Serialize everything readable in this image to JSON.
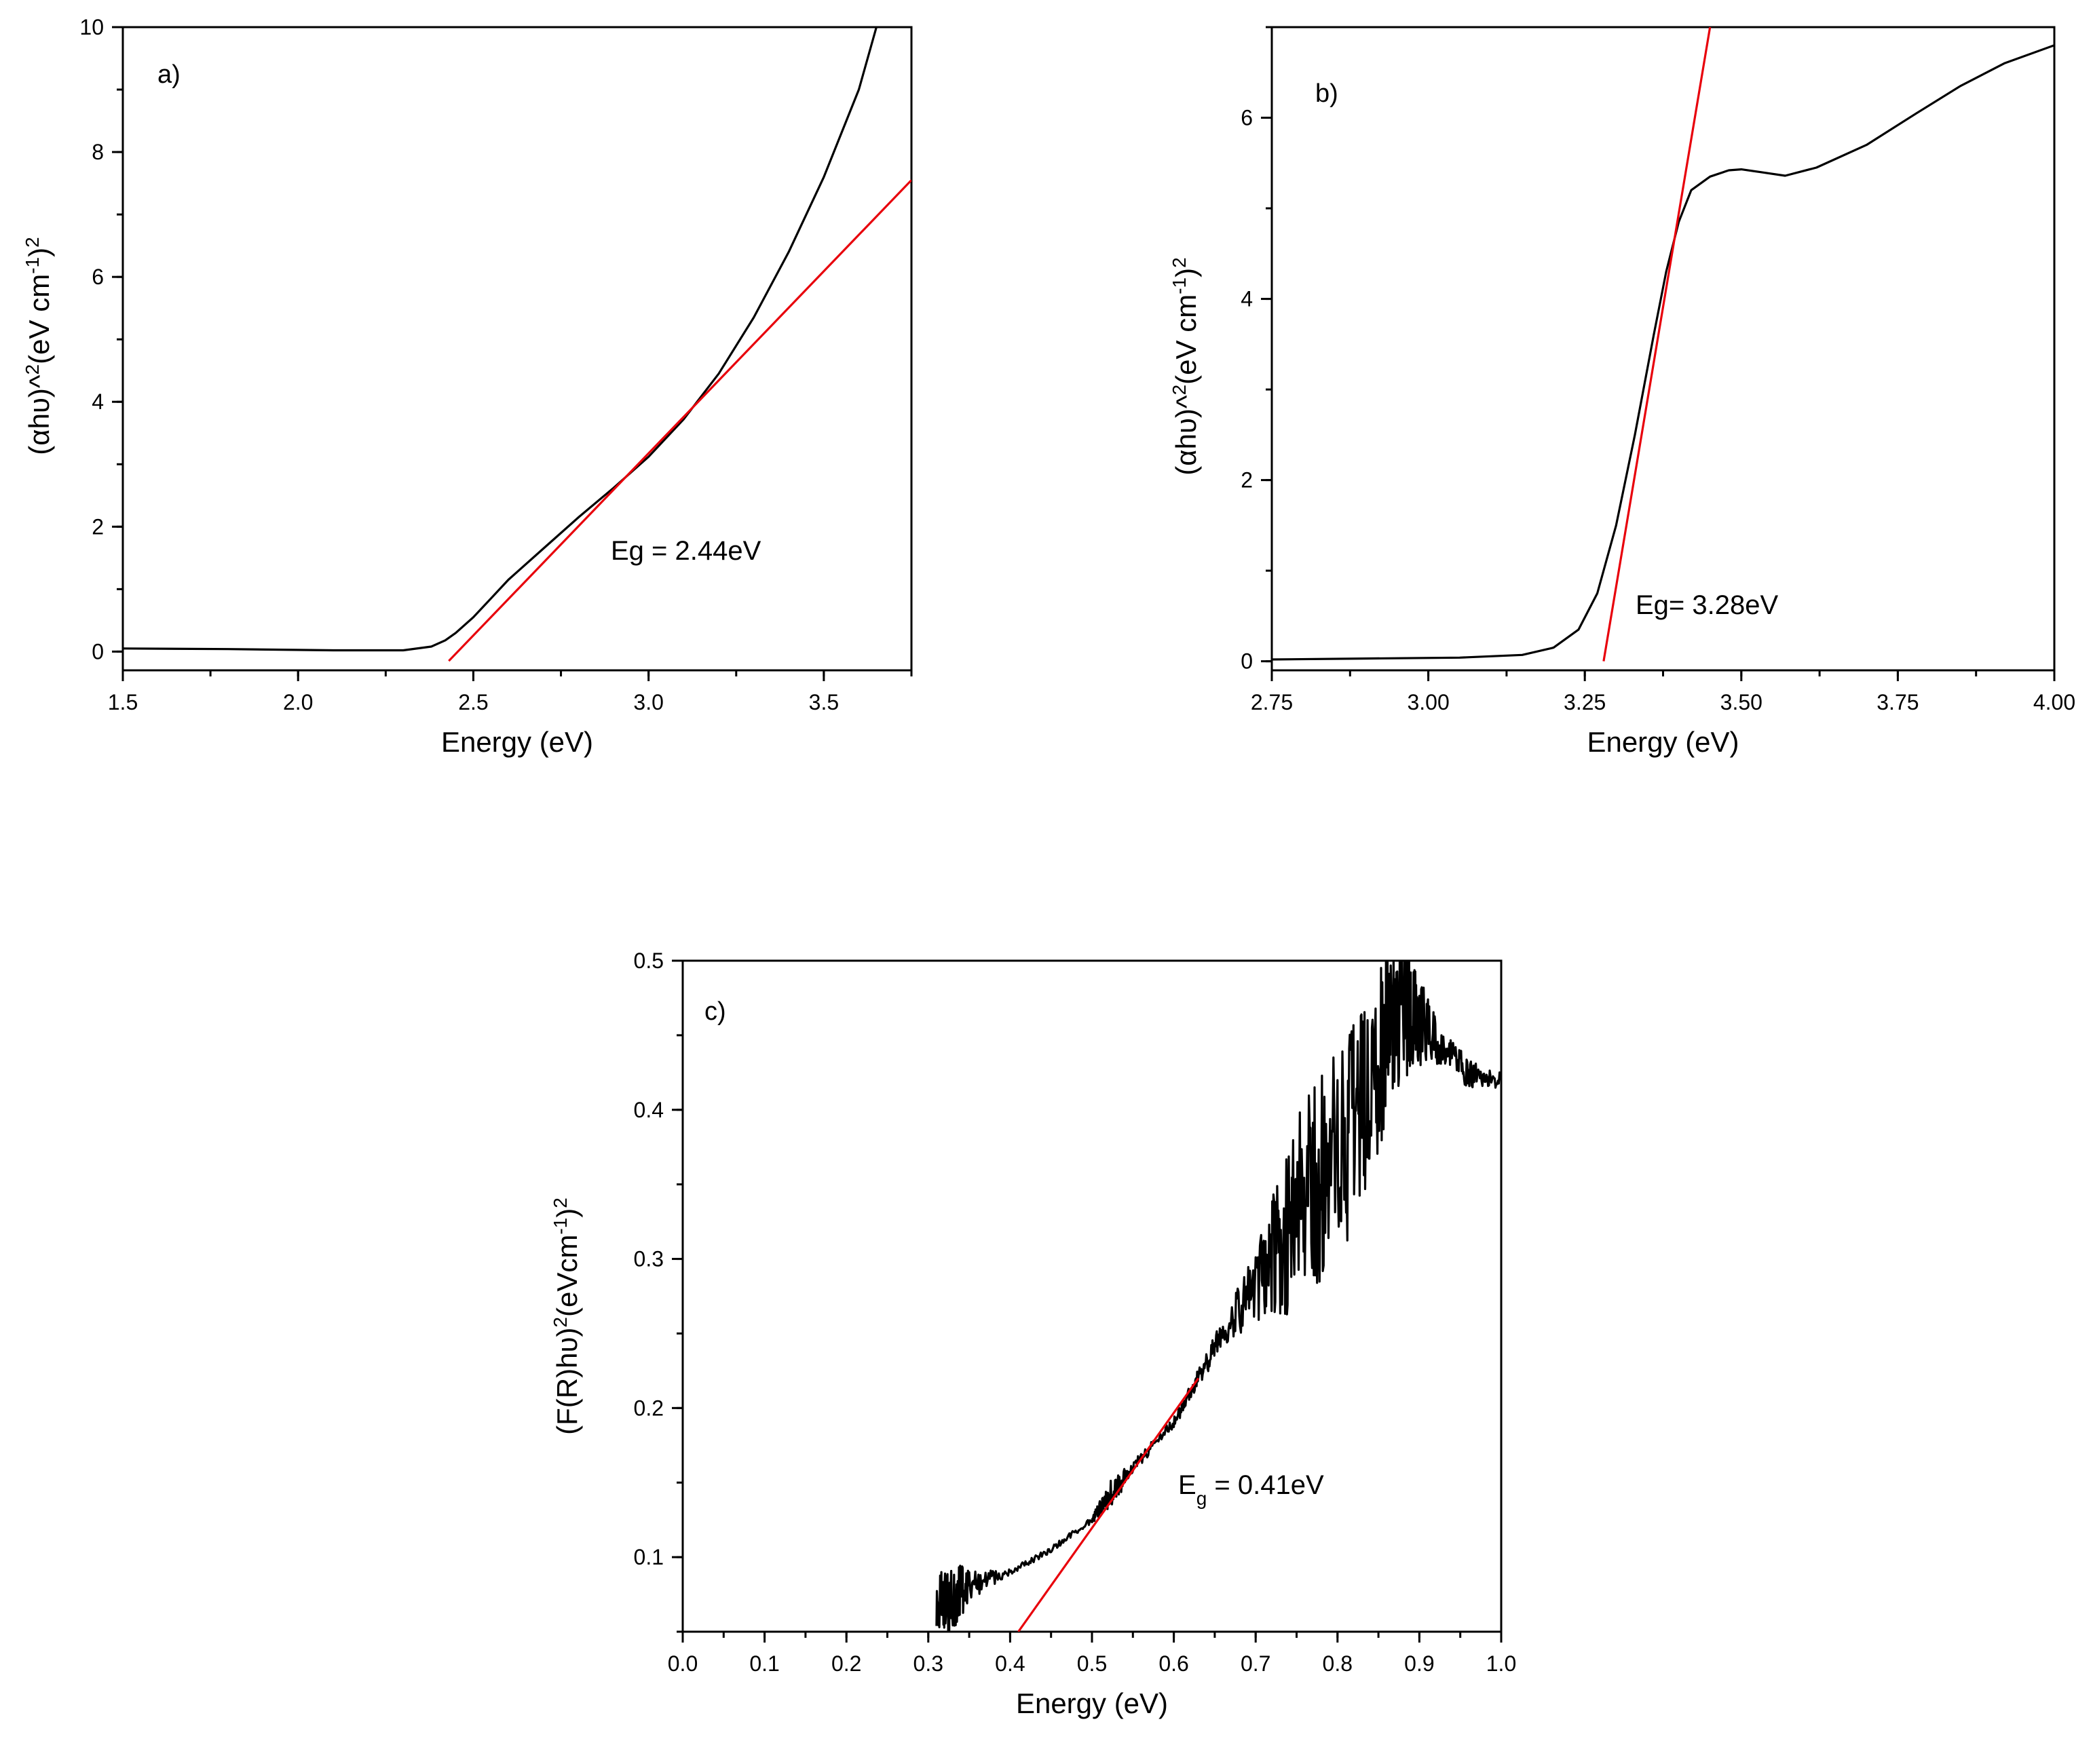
{
  "chart_data": [
    {
      "id": "a",
      "type": "line",
      "panel_label": "a)",
      "xlabel": "Energy (eV)",
      "ylabel_base": "(αhυ)^",
      "ylabel_sup1": "2",
      "ylabel_mid": "(eV cm",
      "ylabel_sup2": "-1",
      "ylabel_close": ")",
      "ylabel_sup3": "2",
      "xlim": [
        1.5,
        3.75
      ],
      "ylim": [
        -0.3,
        10
      ],
      "xticks": [
        "1.5",
        "2.0",
        "2.5",
        "3.0",
        "3.5"
      ],
      "yticks": [
        "0",
        "2",
        "4",
        "6",
        "8",
        "10"
      ],
      "annotation": "Eg = 2.44eV",
      "series": [
        {
          "name": "data",
          "color": "#000000",
          "x": [
            1.5,
            1.8,
            2.1,
            2.3,
            2.38,
            2.42,
            2.45,
            2.5,
            2.55,
            2.6,
            2.7,
            2.8,
            2.9,
            3.0,
            3.1,
            3.2,
            3.3,
            3.4,
            3.5,
            3.6,
            3.65
          ],
          "y": [
            0.05,
            0.04,
            0.02,
            0.02,
            0.08,
            0.18,
            0.3,
            0.55,
            0.85,
            1.15,
            1.65,
            2.15,
            2.62,
            3.12,
            3.72,
            4.45,
            5.35,
            6.4,
            7.6,
            9.0,
            10.0
          ]
        },
        {
          "name": "linear fit",
          "color": "#e8000b",
          "x": [
            2.43,
            3.75
          ],
          "y": [
            -0.15,
            7.55
          ]
        }
      ]
    },
    {
      "id": "b",
      "type": "line",
      "panel_label": "b)",
      "xlabel": "Energy (eV)",
      "ylabel_base": "(αhυ)^",
      "ylabel_sup1": "2",
      "ylabel_mid": "(eV cm",
      "ylabel_sup2": "-1",
      "ylabel_close": ")",
      "ylabel_sup3": "2",
      "xlim": [
        2.75,
        4.0
      ],
      "ylim": [
        -0.1,
        7.0
      ],
      "xticks": [
        "2.75",
        "3.00",
        "3.25",
        "3.50",
        "3.75",
        "4.00"
      ],
      "yticks": [
        "0",
        "2",
        "4",
        "6"
      ],
      "annotation": "Eg= 3.28eV",
      "series": [
        {
          "name": "data",
          "color": "#000000",
          "x": [
            2.75,
            2.9,
            3.05,
            3.15,
            3.2,
            3.24,
            3.27,
            3.3,
            3.33,
            3.36,
            3.38,
            3.4,
            3.42,
            3.45,
            3.48,
            3.5,
            3.53,
            3.57,
            3.62,
            3.7,
            3.78,
            3.85,
            3.92,
            4.0
          ],
          "y": [
            0.02,
            0.03,
            0.04,
            0.07,
            0.15,
            0.35,
            0.75,
            1.5,
            2.5,
            3.6,
            4.3,
            4.85,
            5.2,
            5.35,
            5.42,
            5.43,
            5.4,
            5.36,
            5.45,
            5.7,
            6.05,
            6.35,
            6.6,
            6.8
          ]
        },
        {
          "name": "linear fit",
          "color": "#e8000b",
          "x": [
            3.28,
            3.45
          ],
          "y": [
            0.0,
            7.0
          ]
        }
      ]
    },
    {
      "id": "c",
      "type": "line",
      "panel_label": "c)",
      "xlabel": "Energy (eV)",
      "ylabel_base": "(F(R)hυ)",
      "ylabel_sup1": "2",
      "ylabel_mid": "(eVcm",
      "ylabel_sup2": "-1",
      "ylabel_close": ")",
      "ylabel_sup3": "2",
      "xlim": [
        0.0,
        1.0
      ],
      "ylim": [
        0.05,
        0.5
      ],
      "xticks": [
        "0.0",
        "0.1",
        "0.2",
        "0.3",
        "0.4",
        "0.5",
        "0.6",
        "0.7",
        "0.8",
        "0.9",
        "1.0"
      ],
      "yticks": [
        "0.1",
        "0.2",
        "0.3",
        "0.4",
        "0.5"
      ],
      "annotation_base": "E",
      "annotation_sub": "g",
      "annotation_rest": " = 0.41eV",
      "series": [
        {
          "name": "data",
          "color": "#000000",
          "x": [
            0.31,
            0.33,
            0.35,
            0.4,
            0.45,
            0.5,
            0.52,
            0.55,
            0.6,
            0.63,
            0.66,
            0.7,
            0.73,
            0.76,
            0.8,
            0.83,
            0.86,
            0.88,
            0.9,
            0.93,
            0.96,
            1.0
          ],
          "y": [
            0.07,
            0.075,
            0.08,
            0.09,
            0.105,
            0.125,
            0.14,
            0.16,
            0.19,
            0.22,
            0.25,
            0.28,
            0.31,
            0.34,
            0.37,
            0.4,
            0.45,
            0.47,
            0.46,
            0.44,
            0.425,
            0.42
          ],
          "noise_amplitude": [
            0.02,
            0.03,
            0.01,
            0.002,
            0.002,
            0.002,
            0.01,
            0.004,
            0.004,
            0.006,
            0.01,
            0.025,
            0.05,
            0.07,
            0.07,
            0.07,
            0.06,
            0.05,
            0.03,
            0.012,
            0.01,
            0.008
          ]
        },
        {
          "name": "linear fit",
          "color": "#e8000b",
          "x": [
            0.41,
            0.63
          ],
          "y": [
            0.05,
            0.22
          ]
        }
      ]
    }
  ]
}
